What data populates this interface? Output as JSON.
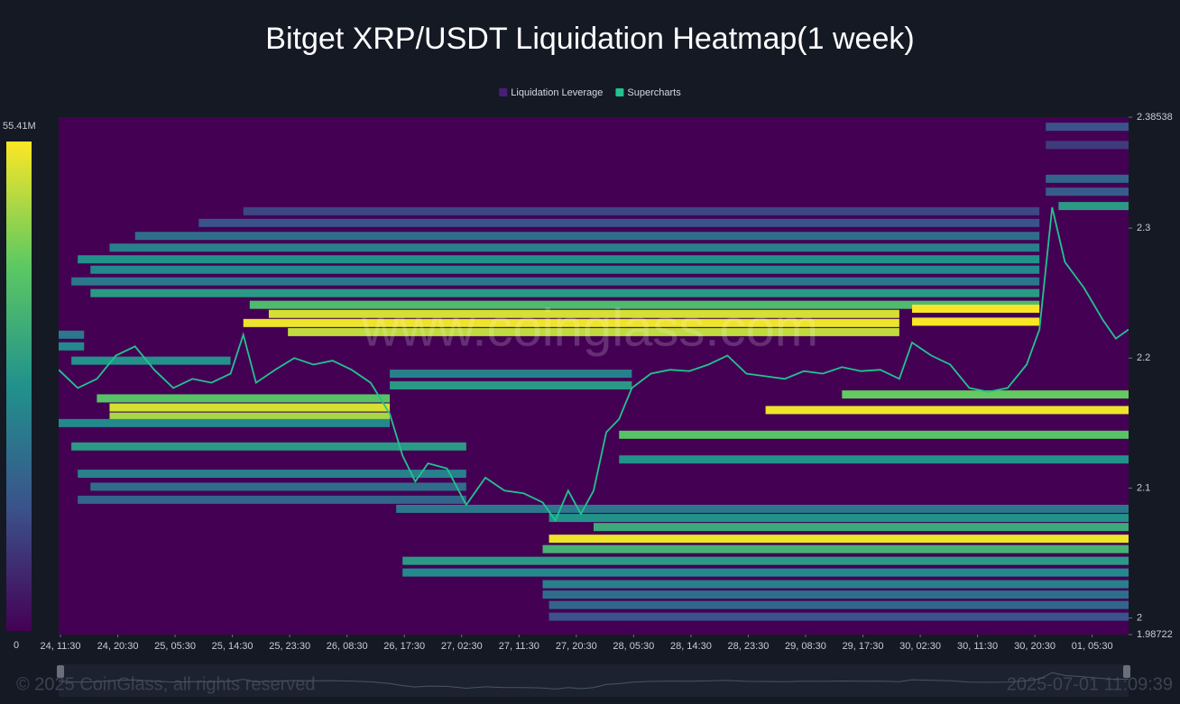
{
  "chart_data": {
    "type": "heatmap",
    "title": "Bitget XRP/USDT Liquidation Heatmap(1 week)",
    "watermark": "www.coinglass.com",
    "footer_left": "© 2025 CoinGlass, all rights reserved",
    "footer_right": "2025-07-01 11:09:39",
    "xlim": [
      0,
      168
    ],
    "xticks": [
      {
        "value": 0,
        "label": "24, 11:30"
      },
      {
        "value": 9,
        "label": "24, 20:30"
      },
      {
        "value": 18,
        "label": "25, 05:30"
      },
      {
        "value": 27,
        "label": "25, 14:30"
      },
      {
        "value": 36,
        "label": "25, 23:30"
      },
      {
        "value": 45,
        "label": "26, 08:30"
      },
      {
        "value": 54,
        "label": "26, 17:30"
      },
      {
        "value": 63,
        "label": "27, 02:30"
      },
      {
        "value": 72,
        "label": "27, 11:30"
      },
      {
        "value": 81,
        "label": "27, 20:30"
      },
      {
        "value": 90,
        "label": "28, 05:30"
      },
      {
        "value": 99,
        "label": "28, 14:30"
      },
      {
        "value": 108,
        "label": "28, 23:30"
      },
      {
        "value": 117,
        "label": "29, 08:30"
      },
      {
        "value": 126,
        "label": "29, 17:30"
      },
      {
        "value": 135,
        "label": "30, 02:30"
      },
      {
        "value": 144,
        "label": "30, 11:30"
      },
      {
        "value": 153,
        "label": "30, 20:30"
      },
      {
        "value": 162,
        "label": "01, 05:30"
      }
    ],
    "ylim": [
      1.98722,
      2.38538
    ],
    "yticks": [
      2.38538,
      2.3,
      2.2,
      2.1,
      2,
      1.98722
    ],
    "colorbar_lim": [
      0,
      55.41
    ],
    "colorbar_ticks": [
      0,
      {
        "value": 55.41,
        "label": "55.41M"
      }
    ],
    "background": "#440154",
    "series": [
      {
        "name": "Liquidation Leverage",
        "color": "#4a1d7a",
        "levels": [
          2.378,
          2.364,
          2.338,
          2.328,
          2.317,
          2.313,
          2.304,
          2.294,
          2.285,
          2.276,
          2.268,
          2.259,
          2.25,
          2.241,
          2.234,
          2.227,
          2.22,
          2.238,
          2.228,
          2.218,
          2.209,
          2.198,
          2.188,
          2.179,
          2.172,
          2.169,
          2.162,
          2.155,
          2.16,
          2.15,
          2.141,
          2.132,
          2.122,
          2.111,
          2.101,
          2.091,
          2.084,
          2.077,
          2.07,
          2.061,
          2.053,
          2.044,
          2.035,
          2.026,
          2.018,
          2.01,
          2.001
        ],
        "starts": [
          155,
          155,
          155,
          155,
          157,
          29,
          22,
          12,
          8,
          3,
          5,
          2,
          5,
          30,
          33,
          29,
          36,
          134,
          134,
          0,
          0,
          2,
          52,
          52,
          123,
          6,
          8,
          8,
          111,
          0,
          88,
          2,
          88,
          3,
          5,
          3,
          53,
          77,
          84,
          77,
          76,
          54,
          54,
          76,
          76,
          77,
          77
        ],
        "ends": [
          168,
          168,
          168,
          168,
          168,
          154,
          154,
          154,
          154,
          154,
          154,
          154,
          154,
          154,
          132,
          132,
          132,
          154,
          154,
          4,
          4,
          27,
          90,
          90,
          168,
          52,
          52,
          52,
          168,
          52,
          168,
          64,
          168,
          64,
          64,
          64,
          168,
          168,
          168,
          168,
          168,
          168,
          168,
          168,
          168,
          168,
          168
        ],
        "values": [
          14,
          10,
          18,
          16,
          30,
          12,
          14,
          20,
          24,
          28,
          26,
          22,
          30,
          38,
          52,
          54,
          50,
          55,
          55,
          22,
          26,
          28,
          24,
          30,
          42,
          40,
          52,
          48,
          54,
          26,
          40,
          30,
          28,
          24,
          20,
          18,
          22,
          28,
          34,
          54,
          36,
          30,
          26,
          24,
          20,
          18,
          14
        ]
      },
      {
        "name": "Supercharts",
        "color": "#22c38e",
        "x": [
          0,
          3,
          6,
          9,
          12,
          15,
          18,
          21,
          24,
          27,
          29,
          31,
          34,
          37,
          40,
          43,
          46,
          49,
          52,
          54,
          56,
          58,
          61,
          64,
          67,
          70,
          73,
          76,
          78,
          80,
          82,
          84,
          86,
          88,
          90,
          93,
          96,
          99,
          102,
          105,
          108,
          111,
          114,
          117,
          120,
          123,
          126,
          129,
          132,
          134,
          137,
          140,
          143,
          146,
          149,
          152,
          154,
          156,
          158,
          161,
          164,
          166,
          168
        ],
        "values": [
          2.191,
          2.177,
          2.184,
          2.202,
          2.209,
          2.191,
          2.177,
          2.184,
          2.181,
          2.188,
          2.218,
          2.181,
          2.191,
          2.2,
          2.195,
          2.198,
          2.191,
          2.181,
          2.157,
          2.125,
          2.105,
          2.119,
          2.115,
          2.087,
          2.108,
          2.098,
          2.096,
          2.089,
          2.075,
          2.098,
          2.08,
          2.098,
          2.143,
          2.153,
          2.177,
          2.188,
          2.191,
          2.19,
          2.195,
          2.202,
          2.188,
          2.186,
          2.184,
          2.19,
          2.188,
          2.193,
          2.19,
          2.191,
          2.184,
          2.212,
          2.202,
          2.195,
          2.177,
          2.174,
          2.177,
          2.195,
          2.222,
          2.316,
          2.274,
          2.254,
          2.229,
          2.215,
          2.222
        ]
      }
    ]
  }
}
